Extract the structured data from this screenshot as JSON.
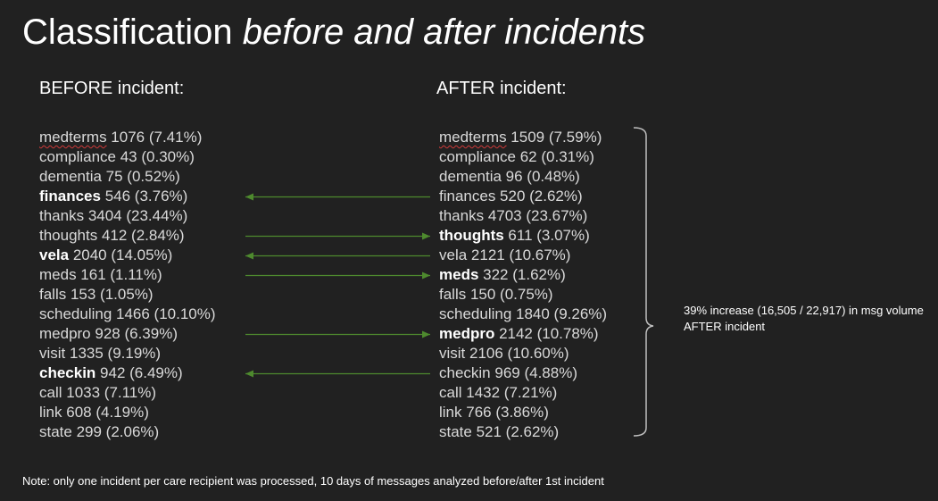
{
  "title": {
    "plain": "Classification ",
    "italic": "before and after incidents"
  },
  "before": {
    "header": "BEFORE incident:",
    "items": [
      {
        "name": "medterms",
        "stats": " 1076 (7.41%)",
        "highlight": false
      },
      {
        "name": "compliance",
        "stats": " 43 (0.30%)",
        "highlight": false
      },
      {
        "name": "dementia",
        "stats": " 75 (0.52%)",
        "highlight": false
      },
      {
        "name": "finances",
        "stats": " 546 (3.76%)",
        "highlight": true
      },
      {
        "name": "thanks",
        "stats": " 3404 (23.44%)",
        "highlight": false
      },
      {
        "name": "thoughts",
        "stats": " 412 (2.84%)",
        "highlight": false
      },
      {
        "name": "vela",
        "stats": " 2040 (14.05%)",
        "highlight": true
      },
      {
        "name": "meds",
        "stats": " 161 (1.11%)",
        "highlight": false
      },
      {
        "name": "falls",
        "stats": " 153 (1.05%)",
        "highlight": false
      },
      {
        "name": "scheduling",
        "stats": " 1466 (10.10%)",
        "highlight": false
      },
      {
        "name": "medpro",
        "stats": " 928 (6.39%)",
        "highlight": false
      },
      {
        "name": "visit",
        "stats": " 1335 (9.19%)",
        "highlight": false
      },
      {
        "name": "checkin",
        "stats": " 942 (6.49%)",
        "highlight": true
      },
      {
        "name": "call",
        "stats": " 1033 (7.11%)",
        "highlight": false
      },
      {
        "name": "link",
        "stats": " 608 (4.19%)",
        "highlight": false
      },
      {
        "name": "state",
        "stats": " 299 (2.06%)",
        "highlight": false
      }
    ]
  },
  "after": {
    "header": "AFTER incident:",
    "items": [
      {
        "name": "medterms",
        "stats": " 1509 (7.59%)",
        "highlight": false
      },
      {
        "name": "compliance",
        "stats": " 62 (0.31%)",
        "highlight": false
      },
      {
        "name": "dementia",
        "stats": " 96 (0.48%)",
        "highlight": false
      },
      {
        "name": "finances",
        "stats": " 520 (2.62%)",
        "highlight": false
      },
      {
        "name": "thanks",
        "stats": " 4703 (23.67%)",
        "highlight": false
      },
      {
        "name": "thoughts",
        "stats": " 611 (3.07%)",
        "highlight": true
      },
      {
        "name": "vela",
        "stats": " 2121 (10.67%)",
        "highlight": false
      },
      {
        "name": "meds",
        "stats": " 322 (1.62%)",
        "highlight": true
      },
      {
        "name": "falls",
        "stats": " 150 (0.75%)",
        "highlight": false
      },
      {
        "name": "scheduling",
        "stats": " 1840 (9.26%)",
        "highlight": false
      },
      {
        "name": "medpro",
        "stats": " 2142 (10.78%)",
        "highlight": true
      },
      {
        "name": "visit",
        "stats": " 2106 (10.60%)",
        "highlight": false
      },
      {
        "name": "checkin",
        "stats": " 969 (4.88%)",
        "highlight": false
      },
      {
        "name": "call",
        "stats": " 1432 (7.21%)",
        "highlight": false
      },
      {
        "name": "link",
        "stats": " 766 (3.86%)",
        "highlight": false
      },
      {
        "name": "state",
        "stats": " 521 (2.62%)",
        "highlight": false
      }
    ]
  },
  "arrows": [
    {
      "category": "finances",
      "direction": "left"
    },
    {
      "category": "thoughts",
      "direction": "right"
    },
    {
      "category": "vela",
      "direction": "left"
    },
    {
      "category": "meds",
      "direction": "right"
    },
    {
      "category": "medpro",
      "direction": "right"
    },
    {
      "category": "checkin",
      "direction": "left"
    }
  ],
  "annotation": "39% increase (16,505 / 22,917)  in msg volume AFTER incident",
  "note": "Note: only one incident per care recipient was processed, 10 days of messages analyzed before/after 1st incident",
  "colors": {
    "background": "#212121",
    "text": "#d9d9d9",
    "highlight_text": "#ffffff",
    "arrow": "#4e8a2e",
    "brace": "#bfbfbf"
  }
}
